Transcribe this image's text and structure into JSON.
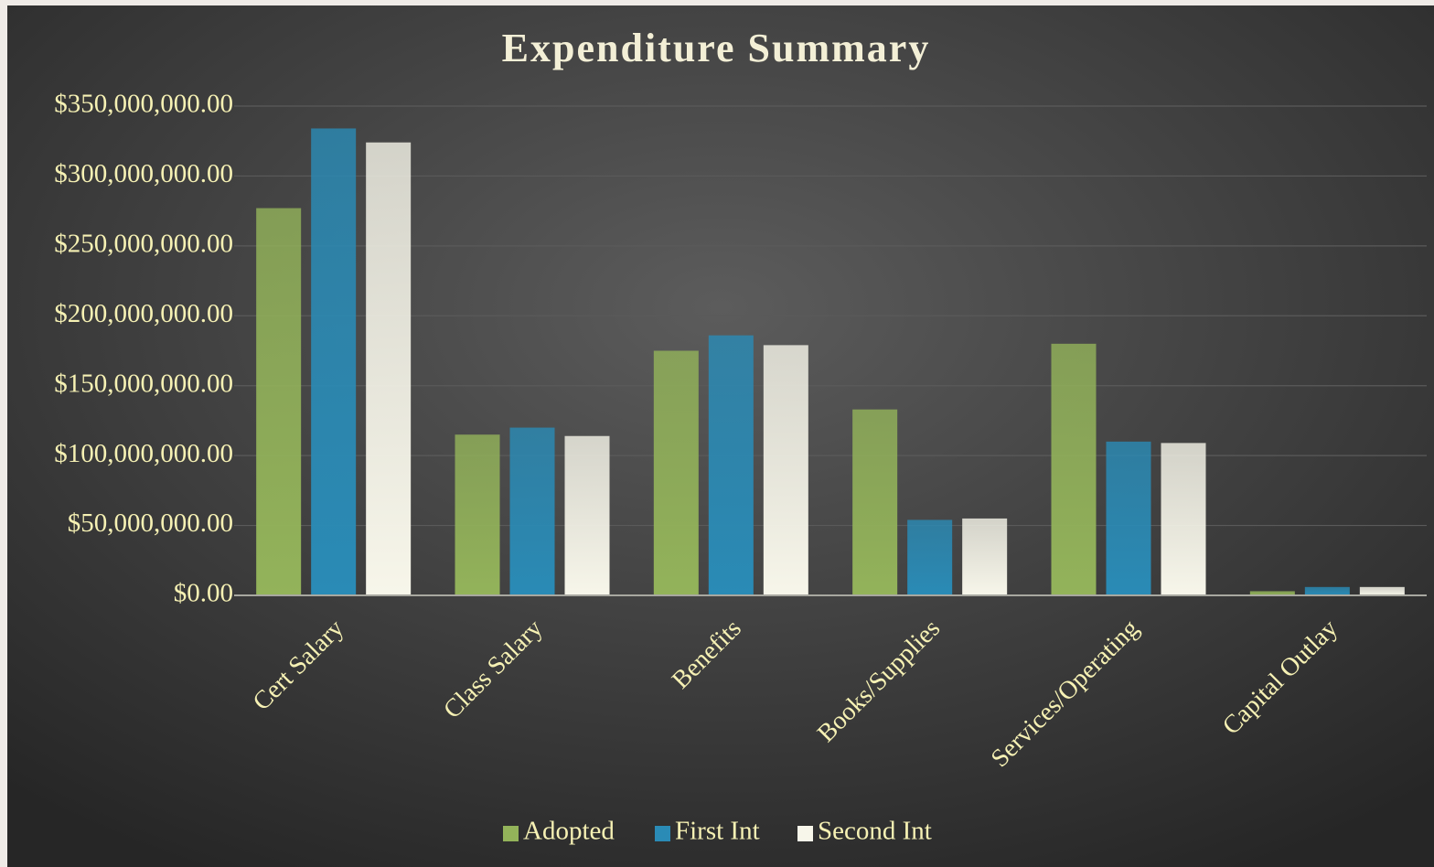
{
  "chart_data": {
    "type": "bar",
    "title": "Expenditure Summary",
    "categories": [
      "Cert Salary",
      "Class Salary",
      "Benefits",
      "Books/Supplies",
      "Services/Operating",
      "Capital Outlay"
    ],
    "series": [
      {
        "name": "Adopted",
        "color": "#93b35a",
        "values": [
          277000000,
          115000000,
          175000000,
          133000000,
          180000000,
          3000000
        ]
      },
      {
        "name": "First Int",
        "color": "#2a8bb6",
        "values": [
          334000000,
          120000000,
          186000000,
          54000000,
          110000000,
          6000000
        ]
      },
      {
        "name": "Second Int",
        "color": "#f7f6ea",
        "values": [
          324000000,
          114000000,
          179000000,
          55000000,
          109000000,
          6000000
        ]
      }
    ],
    "ylim": [
      0,
      350000000
    ],
    "yticks": [
      {
        "value": 0,
        "label": "$0.00"
      },
      {
        "value": 50000000,
        "label": "$50,000,000.00"
      },
      {
        "value": 100000000,
        "label": "$100,000,000.00"
      },
      {
        "value": 150000000,
        "label": "$150,000,000.00"
      },
      {
        "value": 200000000,
        "label": "$200,000,000.00"
      },
      {
        "value": 250000000,
        "label": "$250,000,000.00"
      },
      {
        "value": 300000000,
        "label": "$300,000,000.00"
      },
      {
        "value": 350000000,
        "label": "$350,000,000.00"
      }
    ],
    "grid": true,
    "legend": "bottom"
  }
}
